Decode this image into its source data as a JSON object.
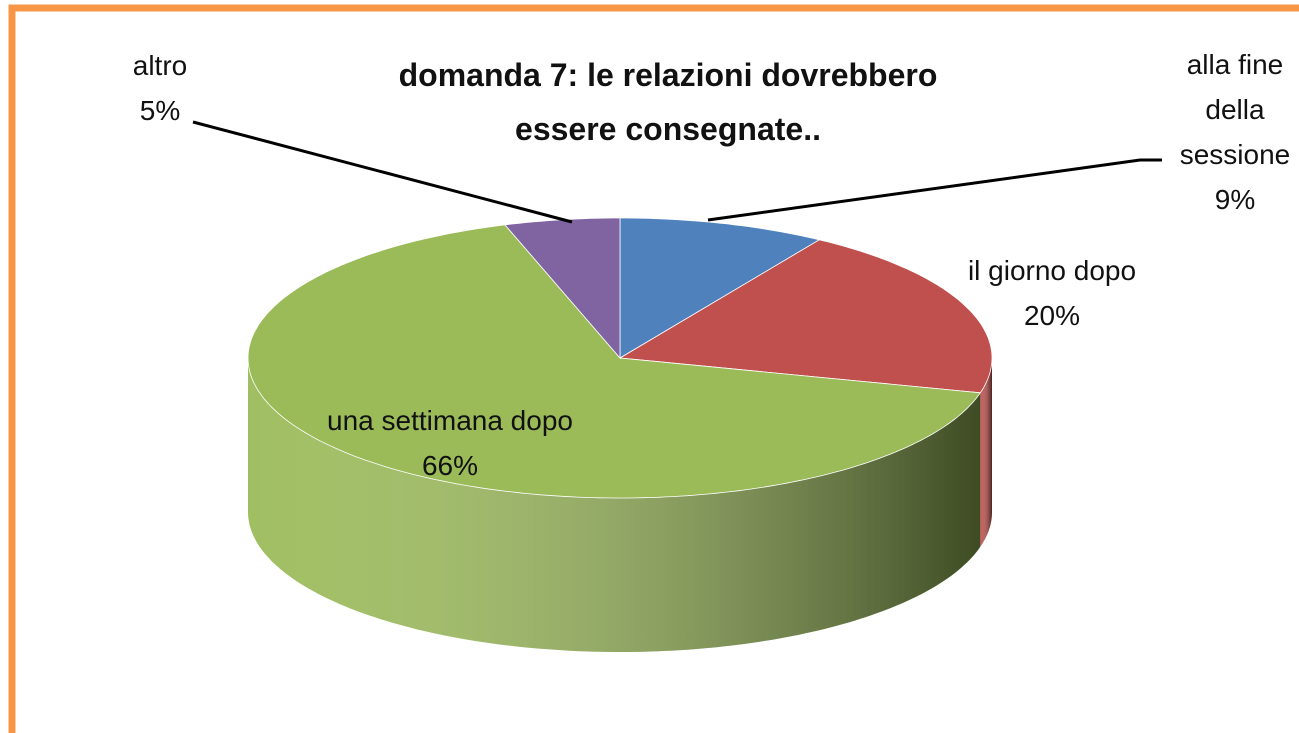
{
  "chart_data": {
    "type": "pie",
    "title": "domanda 7: le relazioni dovrebbero essere consegnate..",
    "categories": [
      "alla fine della sessione",
      "il giorno dopo",
      "una settimana dopo",
      "altro"
    ],
    "values": [
      9,
      20,
      66,
      5
    ],
    "value_labels": [
      "9%",
      "20%",
      "66%",
      "5%"
    ],
    "colors": [
      "#4f81bd",
      "#c0504d",
      "#9bbb59",
      "#8064a2"
    ],
    "three_d": true
  }
}
